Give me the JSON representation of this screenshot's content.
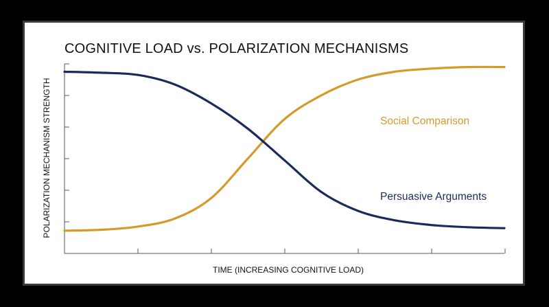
{
  "chart_data": {
    "type": "line",
    "title": "COGNITIVE LOAD vs. POLARIZATION MECHANISMS",
    "xlabel": "TIME (INCREASING COGNITIVE LOAD)",
    "ylabel": "POLARIZATION MECHANISM STRENGTH",
    "x_ticks": 6,
    "y_ticks": 6,
    "grid": false,
    "legend": "inline",
    "series": [
      {
        "name": "Social Comparison",
        "color": "#D49A2A",
        "values": [
          0.72,
          0.75,
          0.85,
          1.1,
          1.75,
          3.0,
          4.25,
          5.0,
          5.5,
          5.75,
          5.85,
          5.9,
          5.9
        ]
      },
      {
        "name": "Persuasive Arguments",
        "color": "#1B2A5C",
        "values": [
          5.75,
          5.72,
          5.65,
          5.35,
          4.75,
          3.95,
          2.95,
          1.95,
          1.35,
          1.05,
          0.9,
          0.83,
          0.8
        ]
      }
    ],
    "x": [
      0,
      0.5,
      1,
      1.5,
      2,
      2.5,
      3,
      3.5,
      4,
      4.5,
      5,
      5.5,
      6
    ],
    "xlim": [
      0,
      6
    ],
    "ylim": [
      0,
      6
    ]
  }
}
